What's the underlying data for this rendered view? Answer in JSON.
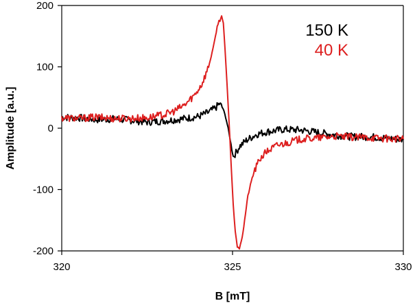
{
  "chart_data": {
    "type": "line",
    "title": "",
    "xlabel": "B [mT]",
    "ylabel": "Amplitude [a.u.]",
    "xlim": [
      320,
      330
    ],
    "ylim": [
      -200,
      200
    ],
    "x_ticks": [
      320,
      325,
      330
    ],
    "y_ticks": [
      200,
      100,
      0,
      -100,
      -200
    ],
    "grid": false,
    "legend_position": "top-right",
    "series": [
      {
        "name": "150 K",
        "color": "#000000",
        "points": [
          [
            320.0,
            18
          ],
          [
            320.5,
            17
          ],
          [
            321.0,
            14
          ],
          [
            321.5,
            15
          ],
          [
            322.0,
            13
          ],
          [
            322.5,
            10
          ],
          [
            323.0,
            12
          ],
          [
            323.5,
            15
          ],
          [
            324.0,
            19
          ],
          [
            324.3,
            26
          ],
          [
            324.5,
            33
          ],
          [
            324.62,
            40
          ],
          [
            324.72,
            32
          ],
          [
            324.8,
            18
          ],
          [
            324.87,
            0
          ],
          [
            324.93,
            -18
          ],
          [
            324.98,
            -35
          ],
          [
            325.02,
            -46
          ],
          [
            325.1,
            -40
          ],
          [
            325.2,
            -30
          ],
          [
            325.4,
            -20
          ],
          [
            325.7,
            -10
          ],
          [
            326.0,
            -6
          ],
          [
            326.5,
            -2
          ],
          [
            327.0,
            -3
          ],
          [
            327.5,
            -7
          ],
          [
            328.0,
            -11
          ],
          [
            328.5,
            -14
          ],
          [
            329.0,
            -14
          ],
          [
            329.5,
            -16
          ],
          [
            330.0,
            -19
          ]
        ]
      },
      {
        "name": "40 K",
        "color": "#dd1f1f",
        "points": [
          [
            320.0,
            17
          ],
          [
            320.5,
            16
          ],
          [
            321.0,
            18
          ],
          [
            321.5,
            16
          ],
          [
            322.0,
            16
          ],
          [
            322.5,
            17
          ],
          [
            323.0,
            22
          ],
          [
            323.3,
            28
          ],
          [
            323.6,
            38
          ],
          [
            323.9,
            55
          ],
          [
            324.1,
            72
          ],
          [
            324.3,
            100
          ],
          [
            324.45,
            135
          ],
          [
            324.55,
            165
          ],
          [
            324.63,
            180
          ],
          [
            324.68,
            183
          ],
          [
            324.73,
            170
          ],
          [
            324.78,
            130
          ],
          [
            324.84,
            70
          ],
          [
            324.9,
            10
          ],
          [
            324.96,
            -60
          ],
          [
            325.02,
            -125
          ],
          [
            325.08,
            -170
          ],
          [
            325.14,
            -190
          ],
          [
            325.2,
            -196
          ],
          [
            325.26,
            -185
          ],
          [
            325.33,
            -160
          ],
          [
            325.45,
            -110
          ],
          [
            325.6,
            -75
          ],
          [
            325.8,
            -50
          ],
          [
            326.0,
            -38
          ],
          [
            326.3,
            -28
          ],
          [
            326.7,
            -22
          ],
          [
            327.0,
            -18
          ],
          [
            327.5,
            -16
          ],
          [
            328.0,
            -13
          ],
          [
            328.5,
            -15
          ],
          [
            329.0,
            -15
          ],
          [
            329.5,
            -17
          ],
          [
            330.0,
            -18
          ]
        ]
      }
    ]
  }
}
